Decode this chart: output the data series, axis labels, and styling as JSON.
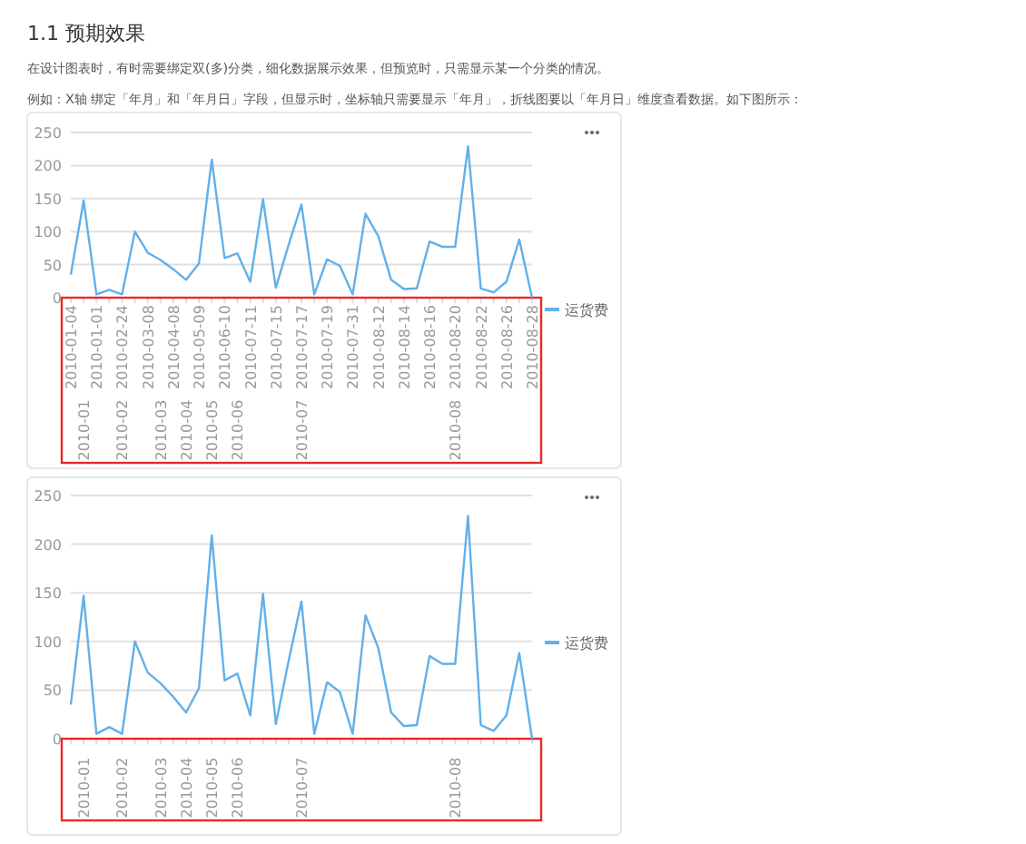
{
  "chart_data": [
    {
      "type": "other",
      "title": "1.1 预期效果",
      "annotations": [
        "在设计图表时，有时需要绑定双(多)分类，细化数据展示效果，但预览时，只需显示某一个分类的情况。",
        "例如：X轴 绑定「年月」和「年月日」字段，但显示时，坐标轴只需要显示「年月」，折线图要以「年月日」维度查看数据。如下图所示："
      ]
    },
    {
      "type": "line",
      "categories": [
        "2010-01-04",
        null,
        "2010-01-01",
        null,
        "2010-02-24",
        null,
        "2010-03-08",
        null,
        "2010-04-08",
        null,
        "2010-05-09",
        null,
        "2010-06-10",
        null,
        "2010-07-11",
        null,
        "2010-07-15",
        null,
        "2010-07-17",
        null,
        "2010-07-19",
        null,
        "2010-07-31",
        null,
        "2010-08-12",
        null,
        "2010-08-14",
        null,
        "2010-08-16",
        null,
        "2010-08-20",
        null,
        "2010-08-22",
        null,
        "2010-08-26",
        null,
        "2010-08-28"
      ],
      "series": [
        {
          "name": "运货费",
          "color": "#61b0ea",
          "values": [
            35,
            147,
            5,
            12,
            5,
            100,
            68,
            57,
            43,
            27,
            52,
            209,
            60,
            67,
            24,
            149,
            15,
            80,
            141,
            5,
            58,
            48,
            5,
            127,
            93,
            27,
            13,
            14,
            85,
            77,
            77,
            229,
            14,
            8,
            24,
            88,
            0
          ]
        }
      ],
      "ylim": [
        0,
        250
      ],
      "yticks": [
        0,
        50,
        100,
        150,
        200,
        250
      ],
      "grid": "y",
      "legend": "right",
      "marker": "none",
      "line_style": "solid",
      "annotations": [
        "2010-01",
        "2010-02",
        "2010-03",
        "2010-04",
        "2010-05",
        "2010-06",
        "2010-07",
        "2010-08"
      ]
    },
    {
      "type": "line",
      "categories": [
        null,
        "2010-01",
        null,
        null,
        "2010-02",
        null,
        null,
        "2010-03",
        null,
        "2010-04",
        null,
        "2010-05",
        null,
        "2010-06",
        null,
        null,
        null,
        null,
        "2010-07",
        null,
        null,
        null,
        null,
        null,
        null,
        null,
        null,
        null,
        null,
        null,
        "2010-08",
        null,
        null,
        null,
        null,
        null,
        null
      ],
      "series": [
        {
          "name": "运货费",
          "color": "#61b0ea",
          "values": [
            35,
            147,
            5,
            12,
            5,
            100,
            68,
            57,
            43,
            27,
            52,
            209,
            60,
            67,
            24,
            149,
            15,
            80,
            141,
            5,
            58,
            48,
            5,
            127,
            93,
            27,
            13,
            14,
            85,
            77,
            77,
            229,
            14,
            8,
            24,
            88,
            0
          ]
        }
      ],
      "ylim": [
        0,
        250
      ],
      "yticks": [
        0,
        50,
        100,
        150,
        200,
        250
      ],
      "grid": "y",
      "legend": "right",
      "marker": "none",
      "line_style": "solid"
    }
  ]
}
